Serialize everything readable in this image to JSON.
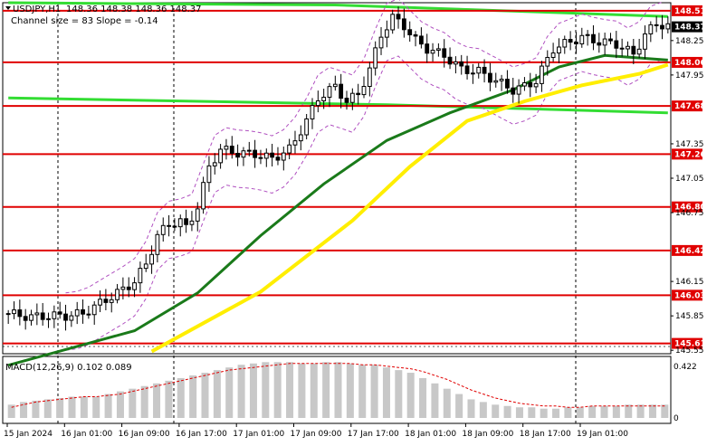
{
  "header": {
    "symbol": "USDJPY,H1",
    "ohlc": "148.36 148.38 148.36 148.37",
    "indicator": "Channel size = 83 Slope = -0.14"
  },
  "macd": {
    "label": "MACD(12,26,9) 0.102 0.089",
    "y_labels": [
      "0.422",
      "0"
    ]
  },
  "price_axis": {
    "ticks": [
      "148.25",
      "147.95",
      "147.35",
      "147.05",
      "146.75",
      "146.15",
      "145.85",
      "145.55"
    ]
  },
  "time_axis": {
    "labels": [
      "15 Jan 2024",
      "16 Jan 01:00",
      "16 Jan 09:00",
      "16 Jan 17:00",
      "17 Jan 01:00",
      "17 Jan 09:00",
      "17 Jan 17:00",
      "18 Jan 01:00",
      "18 Jan 09:00",
      "18 Jan 17:00",
      "19 Jan 01:00"
    ]
  },
  "colors": {
    "level_line": "#e00000",
    "label_bg": "#e00000",
    "current_price_bg": "#000000",
    "ma_fast": "#1a7a1a",
    "ma_slow": "#ffee00",
    "channel": "#33dd33",
    "bollinger": "#b050c0",
    "macd_hist": "#c8c8c8",
    "macd_signal": "#e00000"
  },
  "chart_data": {
    "type": "candlestick",
    "symbol": "USDJPY",
    "timeframe": "H1",
    "y_range": [
      145.52,
      148.58
    ],
    "levels": [
      148.51,
      148.06,
      147.68,
      147.26,
      146.8,
      146.42,
      146.03,
      145.61
    ],
    "current_price": 148.37,
    "ohlc_last": {
      "open": 148.36,
      "high": 148.38,
      "low": 148.36,
      "close": 148.37
    },
    "close_path": [
      [
        0,
        145.87
      ],
      [
        4,
        145.84
      ],
      [
        7,
        145.85
      ],
      [
        10,
        145.85
      ],
      [
        13,
        145.87
      ],
      [
        16,
        145.96
      ],
      [
        20,
        146.08
      ],
      [
        22,
        146.15
      ],
      [
        24,
        146.3
      ],
      [
        26,
        146.55
      ],
      [
        28,
        146.65
      ],
      [
        30,
        146.67
      ],
      [
        31,
        146.62
      ],
      [
        33,
        146.8
      ],
      [
        35,
        147.15
      ],
      [
        37,
        147.3
      ],
      [
        40,
        147.27
      ],
      [
        43,
        147.26
      ],
      [
        46,
        147.22
      ],
      [
        49,
        147.3
      ],
      [
        52,
        147.55
      ],
      [
        54,
        147.75
      ],
      [
        57,
        147.85
      ],
      [
        59,
        147.72
      ],
      [
        61,
        147.78
      ],
      [
        63,
        148.0
      ],
      [
        65,
        148.3
      ],
      [
        67,
        148.45
      ],
      [
        69,
        148.38
      ],
      [
        71,
        148.25
      ],
      [
        73,
        148.18
      ],
      [
        76,
        148.12
      ],
      [
        79,
        148.0
      ],
      [
        82,
        147.98
      ],
      [
        85,
        147.9
      ],
      [
        88,
        147.82
      ],
      [
        90,
        147.85
      ],
      [
        92,
        147.9
      ],
      [
        95,
        148.18
      ],
      [
        97,
        148.22
      ],
      [
        100,
        148.28
      ],
      [
        103,
        148.24
      ],
      [
        106,
        148.22
      ],
      [
        109,
        148.13
      ],
      [
        111,
        148.3
      ],
      [
        113,
        148.4
      ],
      [
        115,
        148.37
      ]
    ],
    "ma_fast": [
      [
        0,
        145.42
      ],
      [
        22,
        145.72
      ],
      [
        33,
        146.05
      ],
      [
        44,
        146.55
      ],
      [
        55,
        147.0
      ],
      [
        66,
        147.38
      ],
      [
        77,
        147.62
      ],
      [
        88,
        147.82
      ],
      [
        96,
        148.02
      ],
      [
        104,
        148.12
      ],
      [
        115,
        148.08
      ]
    ],
    "ma_slow": [
      [
        25,
        145.54
      ],
      [
        44,
        146.06
      ],
      [
        60,
        146.68
      ],
      [
        70,
        147.15
      ],
      [
        80,
        147.55
      ],
      [
        90,
        147.72
      ],
      [
        100,
        147.86
      ],
      [
        110,
        147.96
      ],
      [
        115,
        148.04
      ]
    ],
    "channel": [
      {
        "name": "upper",
        "points": [
          [
            0,
            148.58
          ],
          [
            57,
            148.56
          ],
          [
            115,
            148.46
          ]
        ]
      },
      {
        "name": "lower",
        "points": [
          [
            0,
            147.75
          ],
          [
            66,
            147.69
          ],
          [
            115,
            147.62
          ]
        ]
      }
    ],
    "macd": {
      "histogram": [
        0.1,
        0.12,
        0.13,
        0.14,
        0.15,
        0.16,
        0.16,
        0.16,
        0.18,
        0.2,
        0.22,
        0.24,
        0.26,
        0.28,
        0.3,
        0.32,
        0.34,
        0.36,
        0.38,
        0.4,
        0.41,
        0.42,
        0.42,
        0.42,
        0.41,
        0.41,
        0.42,
        0.42,
        0.41,
        0.4,
        0.4,
        0.38,
        0.36,
        0.34,
        0.3,
        0.26,
        0.22,
        0.18,
        0.14,
        0.12,
        0.1,
        0.09,
        0.08,
        0.08,
        0.07,
        0.07,
        0.08,
        0.08,
        0.09,
        0.09,
        0.09,
        0.1,
        0.1,
        0.1,
        0.1
      ],
      "signal": [
        0.08,
        0.1,
        0.12,
        0.13,
        0.14,
        0.15,
        0.16,
        0.16,
        0.17,
        0.18,
        0.2,
        0.22,
        0.24,
        0.26,
        0.28,
        0.3,
        0.32,
        0.34,
        0.36,
        0.37,
        0.38,
        0.39,
        0.4,
        0.41,
        0.41,
        0.41,
        0.41,
        0.41,
        0.41,
        0.4,
        0.4,
        0.39,
        0.38,
        0.37,
        0.35,
        0.32,
        0.29,
        0.25,
        0.21,
        0.18,
        0.15,
        0.13,
        0.11,
        0.1,
        0.09,
        0.09,
        0.08,
        0.08,
        0.09,
        0.09,
        0.09,
        0.09,
        0.09,
        0.09,
        0.09
      ]
    }
  }
}
